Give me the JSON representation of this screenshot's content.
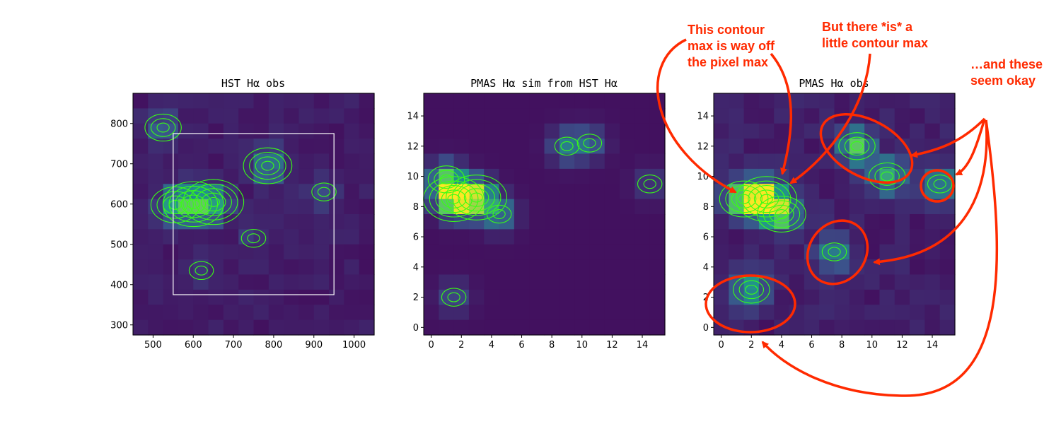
{
  "colors": {
    "contour": "#39ff14",
    "annotation": "#ff2a00",
    "box": "#ffffff",
    "viridis_low": "#440154",
    "viridis_high": "#fde725"
  },
  "chart_data": [
    {
      "type": "heatmap",
      "title": "HST Hα obs",
      "xlim": [
        450,
        1050
      ],
      "ylim": [
        275,
        875
      ],
      "xticks": [
        500,
        600,
        700,
        800,
        900,
        1000
      ],
      "yticks": [
        300,
        400,
        500,
        600,
        700,
        800
      ],
      "overlay": "contours",
      "box": {
        "x0": 550,
        "x1": 950,
        "y0": 375,
        "y1": 775
      },
      "blobs": [
        {
          "x": 600,
          "y": 600,
          "level": 1.0
        },
        {
          "x": 650,
          "y": 605,
          "level": 0.9
        },
        {
          "x": 555,
          "y": 598,
          "level": 0.8
        },
        {
          "x": 785,
          "y": 695,
          "level": 0.75
        },
        {
          "x": 525,
          "y": 790,
          "level": 0.5
        },
        {
          "x": 925,
          "y": 630,
          "level": 0.35
        },
        {
          "x": 620,
          "y": 435,
          "level": 0.2
        },
        {
          "x": 750,
          "y": 515,
          "level": 0.2
        }
      ]
    },
    {
      "type": "heatmap",
      "title": "PMAS Hα sim from HST Hα",
      "xlim": [
        -0.5,
        15.5
      ],
      "ylim": [
        -0.5,
        15.5
      ],
      "xticks": [
        0,
        2,
        4,
        6,
        8,
        10,
        12,
        14
      ],
      "yticks": [
        0,
        2,
        4,
        6,
        8,
        10,
        12,
        14
      ],
      "overlay": "contours",
      "blobs": [
        {
          "x": 1.5,
          "y": 8.5,
          "level": 1.0
        },
        {
          "x": 3.0,
          "y": 8.6,
          "level": 0.9
        },
        {
          "x": 1.0,
          "y": 9.8,
          "level": 0.6
        },
        {
          "x": 4.5,
          "y": 7.5,
          "level": 0.4
        },
        {
          "x": 9.0,
          "y": 12.0,
          "level": 0.35
        },
        {
          "x": 10.5,
          "y": 12.2,
          "level": 0.25
        },
        {
          "x": 1.5,
          "y": 2.0,
          "level": 0.2
        },
        {
          "x": 14.5,
          "y": 9.5,
          "level": 0.15
        }
      ]
    },
    {
      "type": "heatmap",
      "title": "PMAS Hα obs",
      "xlim": [
        -0.5,
        15.5
      ],
      "ylim": [
        -0.5,
        15.5
      ],
      "xticks": [
        0,
        2,
        4,
        6,
        8,
        10,
        12,
        14
      ],
      "yticks": [
        0,
        2,
        4,
        6,
        8,
        10,
        12,
        14
      ],
      "overlay": "contours",
      "blobs": [
        {
          "x": 3.0,
          "y": 8.5,
          "level": 1.0
        },
        {
          "x": 1.5,
          "y": 8.5,
          "level": 0.85
        },
        {
          "x": 4.0,
          "y": 7.5,
          "level": 0.7
        },
        {
          "x": 9.0,
          "y": 12.0,
          "level": 0.65
        },
        {
          "x": 2.0,
          "y": 2.5,
          "level": 0.5
        },
        {
          "x": 7.5,
          "y": 5.0,
          "level": 0.45
        },
        {
          "x": 14.5,
          "y": 9.5,
          "level": 0.45
        },
        {
          "x": 11.0,
          "y": 10.0,
          "level": 0.55
        }
      ]
    }
  ],
  "annotations": [
    {
      "lines": [
        "This contour",
        "max is way off",
        "the pixel max"
      ]
    },
    {
      "lines": [
        "But there *is* a",
        "little contour max"
      ]
    },
    {
      "lines": [
        "…and these",
        "seem okay"
      ]
    }
  ]
}
